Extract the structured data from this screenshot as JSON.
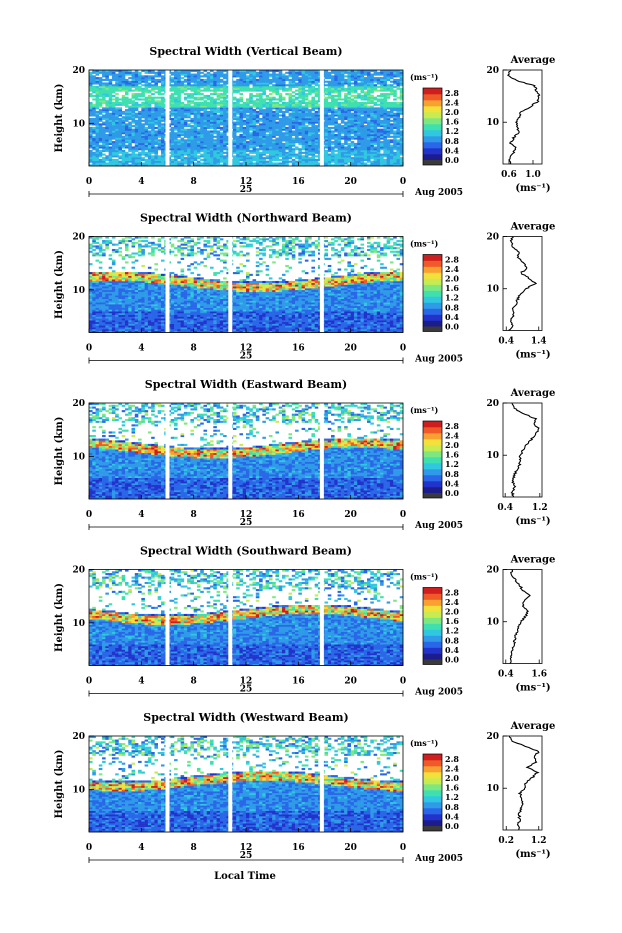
{
  "figure": {
    "xlabel": "Local Time",
    "date_label": "Aug 2005",
    "day_label": "25",
    "x_ticks": [
      "0",
      "4",
      "8",
      "12",
      "16",
      "20",
      "0"
    ],
    "y_label": "Height (km)",
    "y_ticks": [
      "20",
      "10"
    ],
    "colorbar": {
      "unit": "(ms⁻¹)",
      "ticks": [
        "2.8",
        "2.4",
        "2.0",
        "1.6",
        "1.2",
        "0.8",
        "0.4",
        "0.0"
      ],
      "colors": [
        "#1c1c8c",
        "#2233cc",
        "#2a66e8",
        "#2e9ae8",
        "#30c8e0",
        "#3ee0b0",
        "#7ee880",
        "#c8ec50",
        "#f4e03a",
        "#f8a030",
        "#f05a28",
        "#d01e1e"
      ]
    },
    "average": {
      "title": "Average",
      "xlabel": "(ms⁻¹)",
      "y_ticks": [
        "20",
        "10"
      ]
    }
  },
  "chart_data": [
    {
      "type": "heatmap",
      "title": "Spectral Width (Vertical Beam)",
      "xlabel": "Local Time",
      "ylabel": "Height (km)",
      "xlim": [
        0,
        24
      ],
      "ylim": [
        2,
        20
      ],
      "clim": [
        0.0,
        3.0
      ],
      "data_gaps_hours": [
        6.0,
        10.8,
        17.8
      ],
      "colorbar_ticks": [
        2.8,
        2.4,
        2.0,
        1.6,
        1.2,
        0.8,
        0.4,
        0.0
      ],
      "average_profile": {
        "xticks": [
          "0.6",
          "1.0"
        ],
        "xlim": [
          0.5,
          1.15
        ],
        "height_km": [
          2,
          3,
          4,
          5,
          6,
          7,
          8,
          9,
          10,
          11,
          12,
          13,
          14,
          15,
          16,
          17,
          18,
          19,
          20
        ],
        "width_ms": [
          0.64,
          0.6,
          0.66,
          0.72,
          0.63,
          0.68,
          0.76,
          0.74,
          0.72,
          0.78,
          0.8,
          0.96,
          1.08,
          1.1,
          1.06,
          1.02,
          0.72,
          0.58,
          0.62
        ]
      }
    },
    {
      "type": "heatmap",
      "title": "Spectral Width (Northward Beam)",
      "xlabel": "Local Time",
      "ylabel": "Height (km)",
      "xlim": [
        0,
        24
      ],
      "ylim": [
        2,
        20
      ],
      "clim": [
        0.0,
        3.0
      ],
      "data_gaps_hours": [
        6.0,
        10.8,
        17.8
      ],
      "colorbar_ticks": [
        2.8,
        2.4,
        2.0,
        1.6,
        1.2,
        0.8,
        0.4,
        0.0
      ],
      "average_profile": {
        "xticks": [
          "0.4",
          "1.4"
        ],
        "xlim": [
          0.3,
          1.5
        ],
        "height_km": [
          2,
          3,
          4,
          5,
          6,
          7,
          8,
          9,
          10,
          11,
          12,
          13,
          14,
          15,
          16,
          17,
          18,
          19,
          20
        ],
        "width_ms": [
          0.5,
          0.58,
          0.55,
          0.62,
          0.6,
          0.7,
          0.75,
          0.82,
          1.0,
          1.3,
          1.1,
          0.85,
          1.05,
          0.9,
          0.75,
          0.8,
          0.62,
          0.55,
          0.6
        ]
      }
    },
    {
      "type": "heatmap",
      "title": "Spectral Width (Eastward Beam)",
      "xlabel": "Local Time",
      "ylabel": "Height (km)",
      "xlim": [
        0,
        24
      ],
      "ylim": [
        2,
        20
      ],
      "clim": [
        0.0,
        3.0
      ],
      "data_gaps_hours": [
        6.0,
        10.8,
        17.8
      ],
      "colorbar_ticks": [
        2.8,
        2.4,
        2.0,
        1.6,
        1.2,
        0.8,
        0.4,
        0.0
      ],
      "average_profile": {
        "xticks": [
          "0.4",
          "1.2"
        ],
        "xlim": [
          0.35,
          1.25
        ],
        "height_km": [
          2,
          3,
          4,
          5,
          6,
          7,
          8,
          9,
          10,
          11,
          12,
          13,
          14,
          15,
          16,
          17,
          18,
          19,
          20
        ],
        "width_ms": [
          0.6,
          0.56,
          0.62,
          0.58,
          0.6,
          0.66,
          0.72,
          0.76,
          0.74,
          0.82,
          0.9,
          1.0,
          1.1,
          1.18,
          1.05,
          1.1,
          0.8,
          0.62,
          0.58
        ]
      }
    },
    {
      "type": "heatmap",
      "title": "Spectral Width (Southward Beam)",
      "xlabel": "Local Time",
      "ylabel": "Height (km)",
      "xlim": [
        0,
        24
      ],
      "ylim": [
        2,
        20
      ],
      "clim": [
        0.0,
        3.0
      ],
      "data_gaps_hours": [
        6.0,
        10.8,
        17.8
      ],
      "colorbar_ticks": [
        2.8,
        2.4,
        2.0,
        1.6,
        1.2,
        0.8,
        0.4,
        0.0
      ],
      "average_profile": {
        "xticks": [
          "0.4",
          "1.6"
        ],
        "xlim": [
          0.3,
          1.7
        ],
        "height_km": [
          2,
          3,
          4,
          5,
          6,
          7,
          8,
          9,
          10,
          11,
          12,
          13,
          14,
          15,
          16,
          17,
          18,
          19,
          20
        ],
        "width_ms": [
          0.55,
          0.6,
          0.58,
          0.66,
          0.7,
          0.74,
          0.8,
          0.86,
          0.95,
          1.1,
          1.2,
          1.0,
          1.05,
          1.25,
          1.0,
          0.9,
          0.75,
          0.62,
          0.6
        ]
      }
    },
    {
      "type": "heatmap",
      "title": "Spectral Width (Westward Beam)",
      "xlabel": "Local Time",
      "ylabel": "Height (km)",
      "xlim": [
        0,
        24
      ],
      "ylim": [
        2,
        20
      ],
      "clim": [
        0.0,
        3.0
      ],
      "data_gaps_hours": [
        6.0,
        10.8,
        17.8
      ],
      "colorbar_ticks": [
        2.8,
        2.4,
        2.0,
        1.6,
        1.2,
        0.8,
        0.4,
        0.0
      ],
      "average_profile": {
        "xticks": [
          "0.2",
          "1.2"
        ],
        "xlim": [
          0.1,
          1.3
        ],
        "height_km": [
          2,
          3,
          4,
          5,
          6,
          7,
          8,
          9,
          10,
          11,
          12,
          13,
          14,
          15,
          16,
          17,
          18,
          19,
          20
        ],
        "width_ms": [
          0.6,
          0.55,
          0.62,
          0.58,
          0.66,
          0.7,
          0.68,
          0.62,
          0.75,
          0.8,
          1.0,
          1.15,
          0.85,
          1.1,
          1.05,
          1.2,
          0.8,
          0.4,
          0.3
        ]
      }
    }
  ]
}
